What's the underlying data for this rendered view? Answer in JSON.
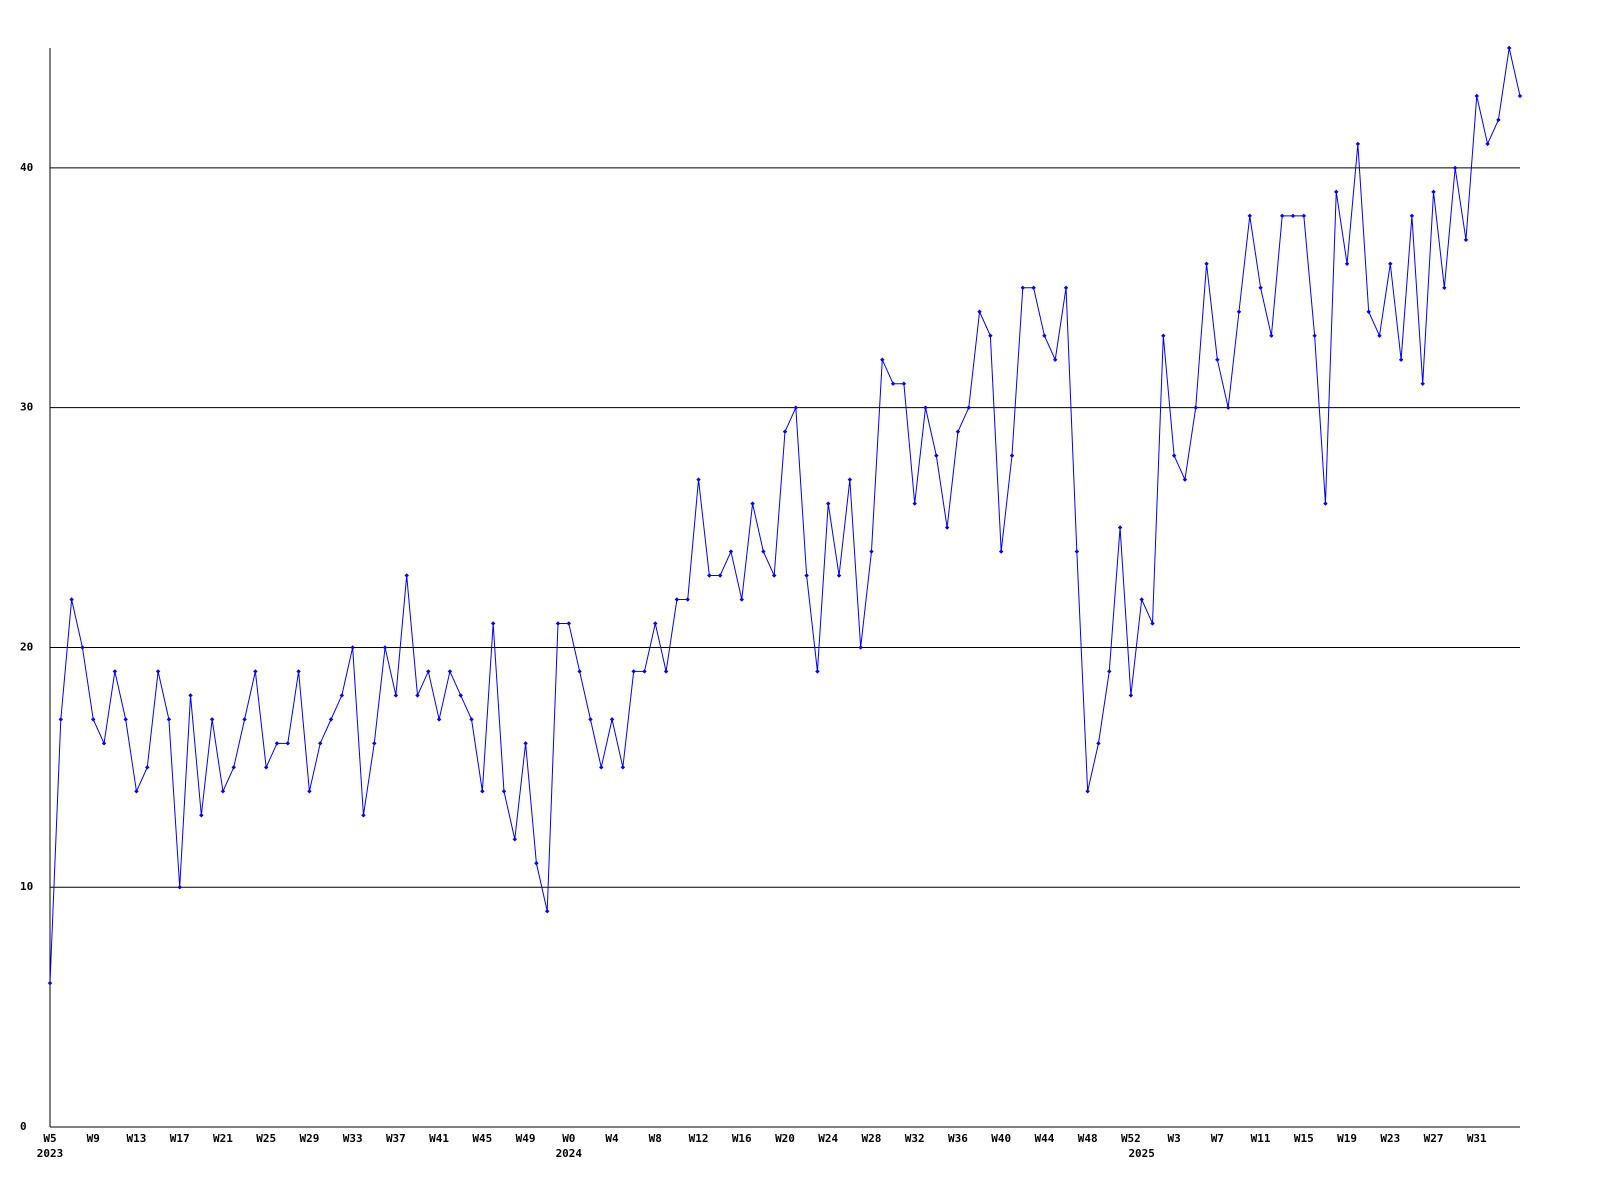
{
  "chart_data": {
    "type": "line",
    "categories": [
      "W5",
      null,
      null,
      null,
      "W9",
      null,
      null,
      null,
      "W13",
      null,
      null,
      null,
      "W17",
      null,
      null,
      null,
      "W21",
      null,
      null,
      null,
      "W25",
      null,
      null,
      null,
      "W29",
      null,
      null,
      null,
      "W33",
      null,
      null,
      null,
      "W37",
      null,
      null,
      null,
      "W41",
      null,
      null,
      null,
      "W45",
      null,
      null,
      null,
      "W49",
      null,
      null,
      null,
      "W0",
      null,
      null,
      null,
      "W4",
      null,
      null,
      null,
      "W8",
      null,
      null,
      null,
      "W12",
      null,
      null,
      null,
      "W16",
      null,
      null,
      null,
      "W20",
      null,
      null,
      null,
      "W24",
      null,
      null,
      null,
      "W28",
      null,
      null,
      null,
      "W32",
      null,
      null,
      null,
      "W36",
      null,
      null,
      null,
      "W40",
      null,
      null,
      null,
      "W44",
      null,
      null,
      null,
      "W48",
      null,
      null,
      null,
      "W52",
      null,
      null,
      null,
      "W3",
      null,
      null,
      null,
      "W7",
      null,
      null,
      null,
      "W11",
      null,
      null,
      null,
      "W15",
      null,
      null,
      null,
      "W19",
      null,
      null,
      null,
      "W23",
      null,
      null,
      null,
      "W27",
      null,
      null,
      null,
      "W31",
      null,
      null,
      null,
      null
    ],
    "years": [
      "2023",
      null,
      null,
      null,
      null,
      null,
      null,
      null,
      null,
      null,
      null,
      null,
      null,
      null,
      null,
      null,
      null,
      null,
      null,
      null,
      null,
      null,
      null,
      null,
      null,
      null,
      null,
      null,
      null,
      null,
      null,
      null,
      null,
      null,
      null,
      null,
      null,
      null,
      null,
      null,
      null,
      null,
      null,
      null,
      null,
      null,
      null,
      null,
      "2024",
      null,
      null,
      null,
      null,
      null,
      null,
      null,
      null,
      null,
      null,
      null,
      null,
      null,
      null,
      null,
      null,
      null,
      null,
      null,
      null,
      null,
      null,
      null,
      null,
      null,
      null,
      null,
      null,
      null,
      null,
      null,
      null,
      null,
      null,
      null,
      null,
      null,
      null,
      null,
      null,
      null,
      null,
      null,
      null,
      null,
      null,
      null,
      null,
      null,
      null,
      null,
      null,
      "2025",
      null,
      null,
      null,
      null,
      null,
      null,
      null,
      null,
      null,
      null,
      null,
      null,
      null,
      null,
      null,
      null,
      null,
      null,
      null,
      null,
      null,
      null,
      null,
      null,
      null,
      null,
      null,
      null,
      null,
      null,
      null,
      null,
      null,
      null,
      null
    ],
    "values": [
      6,
      17,
      22,
      20,
      17,
      16,
      19,
      17,
      14,
      15,
      19,
      17,
      10,
      18,
      13,
      17,
      14,
      15,
      17,
      19,
      15,
      16,
      16,
      19,
      14,
      16,
      17,
      18,
      20,
      13,
      16,
      20,
      18,
      23,
      18,
      19,
      17,
      19,
      18,
      17,
      14,
      21,
      14,
      12,
      16,
      11,
      9,
      21,
      21,
      19,
      17,
      15,
      17,
      15,
      19,
      19,
      21,
      19,
      22,
      22,
      27,
      23,
      23,
      24,
      22,
      26,
      24,
      23,
      29,
      30,
      23,
      19,
      26,
      23,
      27,
      20,
      24,
      32,
      31,
      31,
      26,
      30,
      28,
      25,
      29,
      30,
      34,
      33,
      24,
      28,
      35,
      35,
      33,
      32,
      35,
      24,
      14,
      16,
      19,
      25,
      18,
      22,
      21,
      33,
      28,
      27,
      30,
      36,
      32,
      30,
      34,
      38,
      35,
      33,
      38,
      38,
      38,
      33,
      26,
      39,
      36,
      41,
      34,
      33,
      36,
      32,
      38,
      31,
      39,
      35,
      40,
      37,
      43,
      41,
      42,
      45,
      43
    ],
    "color": "#0000ff",
    "ylim": [
      0,
      45
    ],
    "yticks": [
      0,
      10,
      20,
      30,
      40
    ],
    "grid": true
  }
}
